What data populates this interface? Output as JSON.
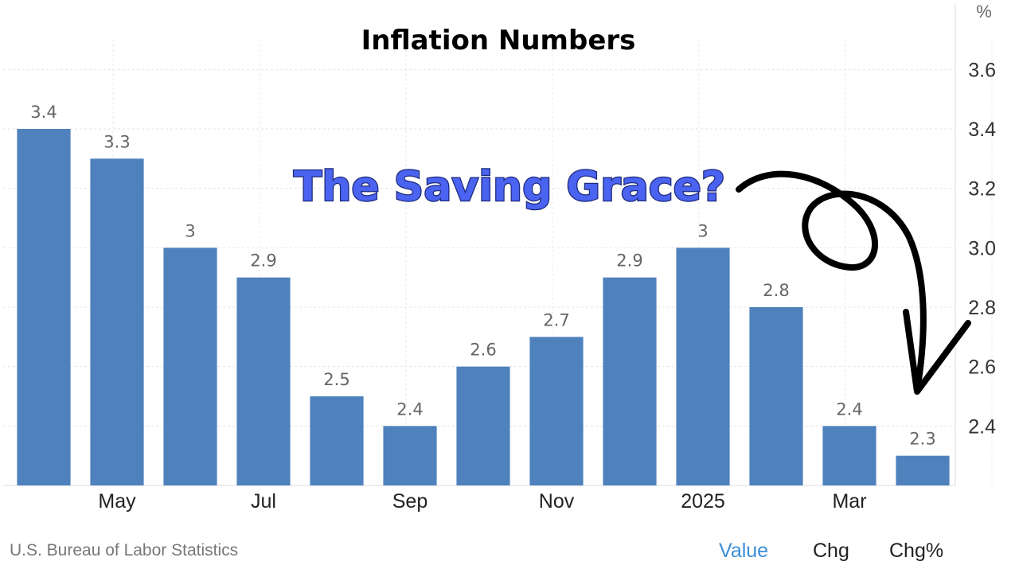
{
  "chart_data": {
    "type": "bar",
    "title": "Inflation Numbers",
    "unit_label": "%",
    "annotation": "The Saving Grace?",
    "values": [
      3.4,
      3.3,
      3.0,
      2.9,
      2.5,
      2.4,
      2.6,
      2.7,
      2.9,
      3.0,
      2.8,
      2.4,
      2.3
    ],
    "value_labels": [
      "3.4",
      "3.3",
      "3",
      "2.9",
      "2.5",
      "2.4",
      "2.6",
      "2.7",
      "2.9",
      "3",
      "2.8",
      "2.4",
      "2.3"
    ],
    "x_tick_labels": [
      "",
      "May",
      "",
      "Jul",
      "",
      "Sep",
      "",
      "Nov",
      "",
      "2025",
      "",
      "Mar",
      ""
    ],
    "y_ticks": [
      "2.4",
      "2.6",
      "2.8",
      "3.0",
      "3.2",
      "3.4",
      "3.6"
    ],
    "ylim": [
      2.2,
      3.7
    ],
    "y_axis_side": "right",
    "grid": true,
    "bar_color": "#4f81bd"
  },
  "footer": {
    "source": "U.S. Bureau of Labor Statistics",
    "tabs": [
      {
        "label": "Value",
        "color": "#3a8fd9",
        "active": true
      },
      {
        "label": "Chg",
        "color": "#222222",
        "active": false
      },
      {
        "label": "Chg%",
        "color": "#222222",
        "active": false
      }
    ]
  }
}
